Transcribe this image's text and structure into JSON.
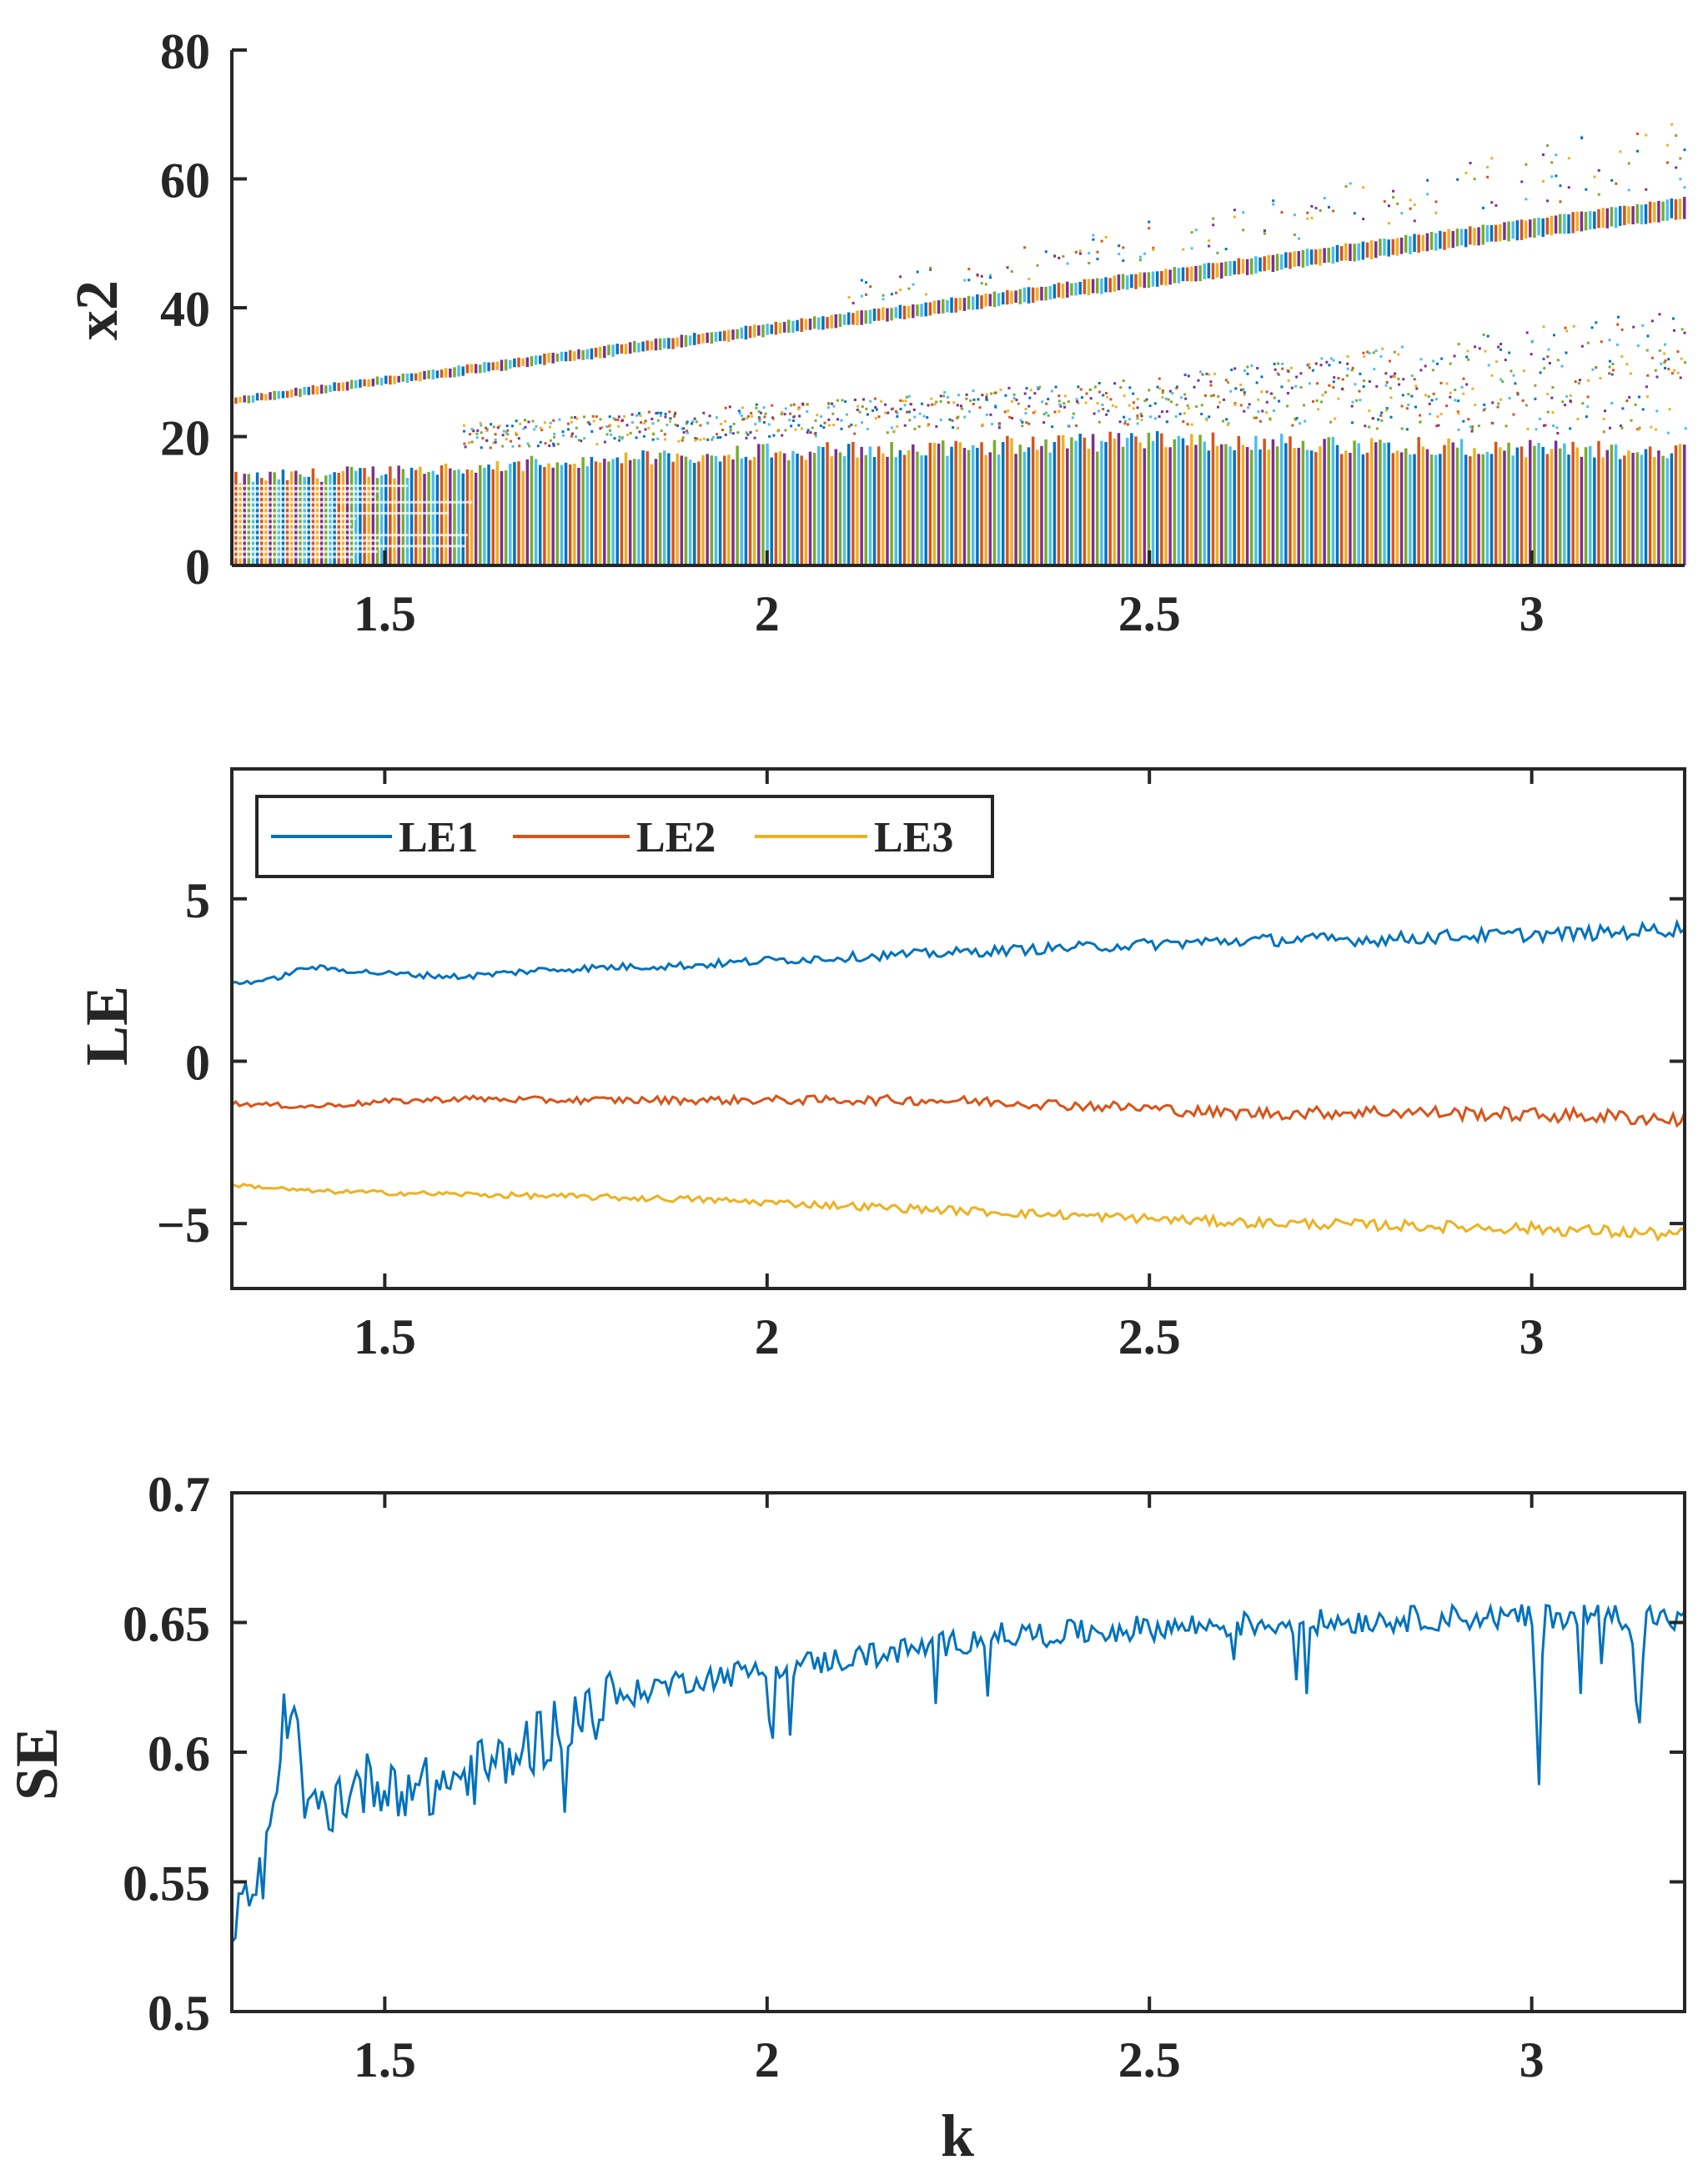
{
  "colors": {
    "LE1": "#0072BD",
    "LE2": "#D95319",
    "LE3": "#EDB120",
    "scatter": [
      "#0072BD",
      "#D95319",
      "#EDB120",
      "#7E2F8E",
      "#77AC30",
      "#4DBEEE"
    ],
    "axis": "#262626"
  },
  "chart_data": [
    {
      "id": "bifurcation",
      "type": "scatter",
      "title": "",
      "xlabel": "",
      "ylabel": "x2",
      "xlim": [
        1.3,
        3.2
      ],
      "ylim": [
        0,
        80
      ],
      "xticks": [
        "1.5",
        "2",
        "2.5",
        "3"
      ],
      "xtick_values": [
        1.5,
        2,
        2.5,
        3
      ],
      "yticks": [
        "0",
        "20",
        "40",
        "60",
        "80"
      ],
      "ytick_values": [
        0,
        20,
        40,
        60,
        80
      ],
      "upper_band": {
        "x": [
          1.3,
          3.2
        ],
        "center": [
          25.5,
          55.5
        ],
        "width": [
          1.5,
          3.5
        ]
      },
      "lower_band_top": {
        "x": [
          1.3,
          2.0,
          2.5,
          3.2
        ],
        "y": [
          14.5,
          19,
          21,
          19
        ]
      },
      "sparse_band": {
        "x": [
          1.6,
          2.5,
          3.2
        ],
        "y_min": [
          18,
          22,
          20
        ],
        "y_max": [
          22,
          29,
          40
        ]
      },
      "outliers_above": {
        "x": [
          2.1,
          3.2
        ],
        "y_min": [
          38,
          56
        ],
        "y_max": [
          44,
          70
        ]
      },
      "box": false
    },
    {
      "id": "lyapunov",
      "type": "line",
      "title": "",
      "xlabel": "",
      "ylabel": "LE",
      "xlim": [
        1.3,
        3.2
      ],
      "ylim": [
        -7,
        9
      ],
      "xticks": [
        "1.5",
        "2",
        "2.5",
        "3"
      ],
      "xtick_values": [
        1.5,
        2,
        2.5,
        3
      ],
      "yticks": [
        "−5",
        "0",
        "5"
      ],
      "ytick_values": [
        -5,
        0,
        5
      ],
      "legend_position": "top-left",
      "x": [
        1.3,
        1.35,
        1.4,
        1.5,
        1.6,
        1.7,
        1.8,
        1.9,
        2.0,
        2.1,
        2.2,
        2.3,
        2.4,
        2.5,
        2.6,
        2.7,
        2.8,
        2.9,
        3.0,
        3.1,
        3.2
      ],
      "series": [
        {
          "name": "LE1",
          "values": [
            2.4,
            2.5,
            2.9,
            2.7,
            2.6,
            2.8,
            2.9,
            2.95,
            3.1,
            3.2,
            3.3,
            3.4,
            3.5,
            3.6,
            3.7,
            3.75,
            3.75,
            3.85,
            3.9,
            3.95,
            4.1
          ],
          "noise": 0.12
        },
        {
          "name": "LE2",
          "values": [
            -1.3,
            -1.35,
            -1.4,
            -1.25,
            -1.15,
            -1.2,
            -1.2,
            -1.2,
            -1.2,
            -1.2,
            -1.2,
            -1.25,
            -1.35,
            -1.45,
            -1.6,
            -1.6,
            -1.55,
            -1.6,
            -1.65,
            -1.7,
            -1.8
          ],
          "noise": 0.12
        },
        {
          "name": "LE3",
          "values": [
            -3.8,
            -3.9,
            -4.0,
            -4.05,
            -4.1,
            -4.15,
            -4.2,
            -4.25,
            -4.35,
            -4.45,
            -4.55,
            -4.65,
            -4.75,
            -4.85,
            -4.95,
            -5.0,
            -5.05,
            -5.1,
            -5.15,
            -5.25,
            -5.35
          ],
          "noise": 0.1
        }
      ]
    },
    {
      "id": "spectral-entropy",
      "type": "line",
      "title": "",
      "xlabel": "k",
      "ylabel": "SE",
      "xlim": [
        1.3,
        3.2
      ],
      "ylim": [
        0.5,
        0.7
      ],
      "xticks": [
        "1.5",
        "2",
        "2.5",
        "3"
      ],
      "xtick_values": [
        1.5,
        2,
        2.5,
        3
      ],
      "yticks": [
        "0.5",
        "0.55",
        "0.6",
        "0.65",
        "0.7"
      ],
      "ytick_values": [
        0.5,
        0.55,
        0.6,
        0.65,
        0.7
      ],
      "x": [
        1.3,
        1.32,
        1.34,
        1.36,
        1.37,
        1.38,
        1.4,
        1.45,
        1.5,
        1.55,
        1.6,
        1.65,
        1.7,
        1.75,
        1.8,
        1.85,
        1.9,
        1.95,
        2.0,
        2.1,
        2.2,
        2.3,
        2.4,
        2.5,
        2.6,
        2.7,
        2.8,
        2.9,
        3.0,
        3.005,
        3.01,
        3.015,
        3.05,
        3.1,
        3.13,
        3.14,
        3.15,
        3.2
      ],
      "values": [
        0.525,
        0.545,
        0.55,
        0.58,
        0.62,
        0.61,
        0.575,
        0.585,
        0.59,
        0.585,
        0.59,
        0.595,
        0.605,
        0.615,
        0.62,
        0.625,
        0.628,
        0.63,
        0.632,
        0.636,
        0.64,
        0.645,
        0.646,
        0.648,
        0.649,
        0.65,
        0.651,
        0.652,
        0.652,
        0.62,
        0.583,
        0.652,
        0.653,
        0.653,
        0.652,
        0.607,
        0.653,
        0.65
      ],
      "noise": 0.005
    }
  ]
}
